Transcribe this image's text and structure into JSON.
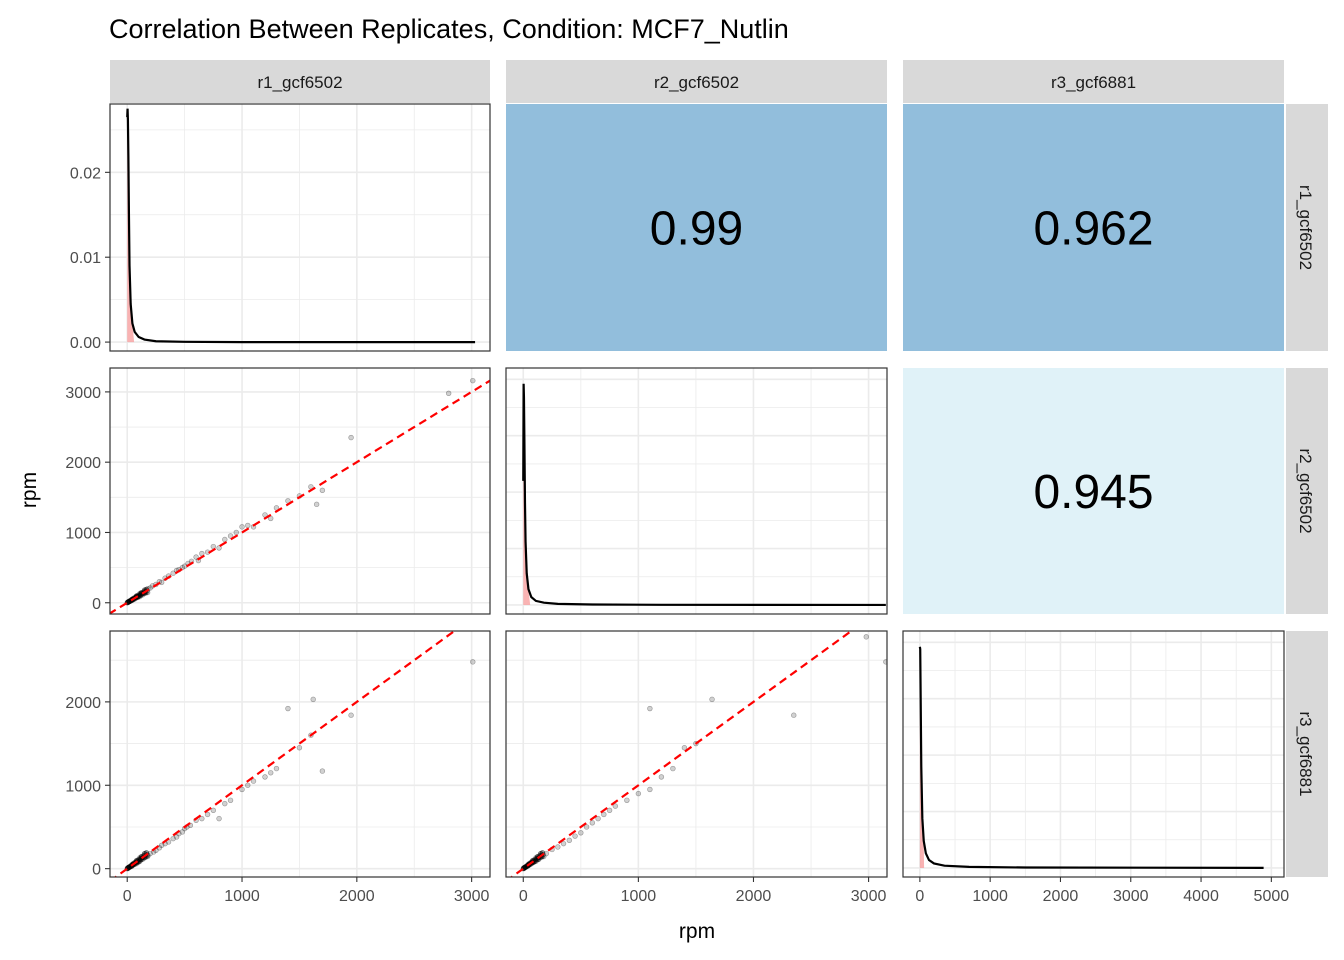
{
  "chart_data": {
    "type": "scatter",
    "title": "Correlation Between Replicates, Condition: MCF7_Nutlin",
    "xlabel": "rpm",
    "ylabel": "rpm",
    "variables": [
      "r1_gcf6502",
      "r2_gcf6502",
      "r3_gcf6881"
    ],
    "x_ranges": [
      [
        -150,
        3160
      ],
      [
        -150,
        3160
      ],
      [
        -240,
        5180
      ]
    ],
    "x_ticks": [
      [
        0,
        1000,
        2000,
        3000
      ],
      [
        0,
        1000,
        2000,
        3000
      ],
      [
        0,
        1000,
        2000,
        3000,
        4000,
        5000
      ]
    ],
    "y_ranges": {
      "density_r1": [
        -0.00105,
        0.02805
      ],
      "scatter_r2": [
        -160,
        3340
      ],
      "scatter_r3": [
        -100,
        2850
      ]
    },
    "y_ticks": {
      "density_r1": [
        0.0,
        0.01,
        0.02
      ],
      "density_r1_labels": [
        "0.00",
        "0.01",
        "0.02"
      ],
      "scatter_r2": [
        0,
        1000,
        2000,
        3000
      ],
      "scatter_r3": [
        0,
        1000,
        2000
      ]
    },
    "correlations": [
      {
        "row": "r1_gcf6502",
        "col": "r2_gcf6502",
        "value": "0.99",
        "fill": "#92bedc"
      },
      {
        "row": "r1_gcf6502",
        "col": "r3_gcf6881",
        "value": "0.962",
        "fill": "#92bedc"
      },
      {
        "row": "r2_gcf6502",
        "col": "r3_gcf6881",
        "value": "0.945",
        "fill": "#e0f2f8"
      }
    ],
    "density_curves": [
      {
        "variable": "r1_gcf6502",
        "x_max": 3030,
        "points": [
          [
            0,
            0.0265
          ],
          [
            3,
            0.0275
          ],
          [
            6,
            0.0262
          ],
          [
            10,
            0.022
          ],
          [
            15,
            0.015
          ],
          [
            20,
            0.009
          ],
          [
            30,
            0.0045
          ],
          [
            45,
            0.0022
          ],
          [
            65,
            0.0012
          ],
          [
            100,
            0.0006
          ],
          [
            150,
            0.0003
          ],
          [
            250,
            0.0001
          ],
          [
            500,
            3e-05
          ],
          [
            1000,
            0
          ],
          [
            3030,
            0
          ]
        ]
      },
      {
        "variable": "r2_gcf6502",
        "x_max": 3150,
        "points": [
          [
            0,
            0.55
          ],
          [
            3,
            0.98
          ],
          [
            6,
            0.92
          ],
          [
            10,
            0.72
          ],
          [
            15,
            0.45
          ],
          [
            20,
            0.28
          ],
          [
            30,
            0.14
          ],
          [
            45,
            0.07
          ],
          [
            70,
            0.035
          ],
          [
            110,
            0.018
          ],
          [
            180,
            0.01
          ],
          [
            300,
            0.005
          ],
          [
            600,
            0.002
          ],
          [
            1200,
            0.0008
          ],
          [
            3150,
            0.0002
          ]
        ]
      },
      {
        "variable": "r3_gcf6881",
        "x_max": 4890,
        "points": [
          [
            0,
            0.98
          ],
          [
            5,
            0.97
          ],
          [
            10,
            0.8
          ],
          [
            20,
            0.45
          ],
          [
            35,
            0.22
          ],
          [
            55,
            0.12
          ],
          [
            85,
            0.065
          ],
          [
            130,
            0.035
          ],
          [
            200,
            0.02
          ],
          [
            350,
            0.01
          ],
          [
            700,
            0.005
          ],
          [
            1500,
            0.002
          ],
          [
            4890,
            0.0005
          ]
        ]
      }
    ],
    "reference_line": {
      "slope": 1,
      "intercept": 0,
      "color": "#ff0000",
      "style": "dashed"
    },
    "series": [
      {
        "name": "",
        "x_var": "r1_gcf6502",
        "y_var": "r2_gcf6502",
        "points": [
          [
            5,
            10
          ],
          [
            20,
            25
          ],
          [
            40,
            45
          ],
          [
            60,
            55
          ],
          [
            80,
            90
          ],
          [
            100,
            95
          ],
          [
            120,
            130
          ],
          [
            150,
            140
          ],
          [
            180,
            200
          ],
          [
            200,
            210
          ],
          [
            220,
            240
          ],
          [
            250,
            260
          ],
          [
            280,
            300
          ],
          [
            300,
            290
          ],
          [
            330,
            350
          ],
          [
            360,
            380
          ],
          [
            400,
            420
          ],
          [
            430,
            460
          ],
          [
            450,
            470
          ],
          [
            480,
            500
          ],
          [
            500,
            520
          ],
          [
            530,
            560
          ],
          [
            560,
            590
          ],
          [
            600,
            650
          ],
          [
            620,
            600
          ],
          [
            650,
            700
          ],
          [
            700,
            720
          ],
          [
            750,
            800
          ],
          [
            800,
            780
          ],
          [
            850,
            900
          ],
          [
            900,
            950
          ],
          [
            950,
            1000
          ],
          [
            1000,
            1080
          ],
          [
            1050,
            1100
          ],
          [
            1100,
            1080
          ],
          [
            1200,
            1250
          ],
          [
            1250,
            1200
          ],
          [
            1300,
            1350
          ],
          [
            1400,
            1450
          ],
          [
            1500,
            1520
          ],
          [
            1600,
            1650
          ],
          [
            1650,
            1400
          ],
          [
            1700,
            1600
          ],
          [
            1950,
            2350
          ],
          [
            2800,
            2980
          ],
          [
            3010,
            3160
          ]
        ]
      },
      {
        "name": "",
        "x_var": "r1_gcf6502",
        "y_var": "r3_gcf6881",
        "points": [
          [
            5,
            10
          ],
          [
            20,
            20
          ],
          [
            40,
            30
          ],
          [
            60,
            50
          ],
          [
            80,
            60
          ],
          [
            100,
            80
          ],
          [
            120,
            110
          ],
          [
            150,
            130
          ],
          [
            180,
            160
          ],
          [
            200,
            180
          ],
          [
            230,
            200
          ],
          [
            250,
            220
          ],
          [
            280,
            250
          ],
          [
            300,
            280
          ],
          [
            330,
            300
          ],
          [
            360,
            320
          ],
          [
            400,
            360
          ],
          [
            430,
            380
          ],
          [
            450,
            420
          ],
          [
            480,
            440
          ],
          [
            500,
            480
          ],
          [
            520,
            500
          ],
          [
            550,
            520
          ],
          [
            600,
            580
          ],
          [
            650,
            600
          ],
          [
            700,
            650
          ],
          [
            750,
            700
          ],
          [
            800,
            600
          ],
          [
            850,
            780
          ],
          [
            900,
            820
          ],
          [
            1000,
            950
          ],
          [
            1050,
            1000
          ],
          [
            1100,
            1050
          ],
          [
            1200,
            1100
          ],
          [
            1250,
            1150
          ],
          [
            1300,
            1200
          ],
          [
            1400,
            1920
          ],
          [
            1500,
            1450
          ],
          [
            1600,
            1600
          ],
          [
            1620,
            2030
          ],
          [
            1700,
            1170
          ],
          [
            1950,
            1840
          ],
          [
            3010,
            2480
          ]
        ]
      },
      {
        "name": "",
        "x_var": "r2_gcf6502",
        "y_var": "r3_gcf6881",
        "points": [
          [
            5,
            10
          ],
          [
            20,
            20
          ],
          [
            40,
            35
          ],
          [
            60,
            55
          ],
          [
            80,
            70
          ],
          [
            100,
            90
          ],
          [
            130,
            110
          ],
          [
            160,
            150
          ],
          [
            200,
            180
          ],
          [
            250,
            230
          ],
          [
            300,
            260
          ],
          [
            350,
            300
          ],
          [
            400,
            340
          ],
          [
            450,
            390
          ],
          [
            500,
            430
          ],
          [
            550,
            500
          ],
          [
            600,
            550
          ],
          [
            650,
            600
          ],
          [
            700,
            650
          ],
          [
            750,
            700
          ],
          [
            800,
            750
          ],
          [
            900,
            820
          ],
          [
            1000,
            900
          ],
          [
            1100,
            950
          ],
          [
            1200,
            1100
          ],
          [
            1300,
            1200
          ],
          [
            1400,
            1450
          ],
          [
            1500,
            1500
          ],
          [
            1640,
            2030
          ],
          [
            1100,
            1920
          ],
          [
            2350,
            1840
          ],
          [
            2980,
            2780
          ],
          [
            3150,
            2480
          ]
        ]
      }
    ],
    "grid": true,
    "legend": "none"
  }
}
